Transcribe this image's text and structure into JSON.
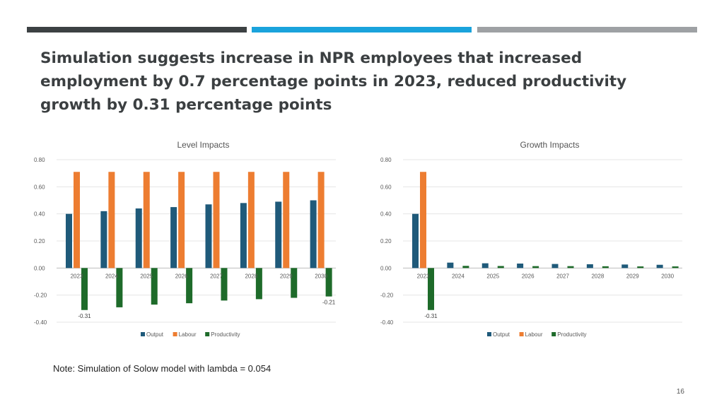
{
  "slide": {
    "title": "Simulation suggests increase in NPR employees that increased employment by 0.7 percentage points in 2023, reduced productivity growth by 0.31 percentage points",
    "note": "Note: Simulation of Solow model with lambda = 0.054",
    "page_number": "16"
  },
  "colors": {
    "output": "#1f5a7a",
    "labour": "#ed7d31",
    "productivity": "#1e6b2a"
  },
  "chart_data": [
    {
      "type": "bar",
      "title": "Level Impacts",
      "categories": [
        "2023",
        "2024",
        "2025",
        "2026",
        "2027",
        "2028",
        "2029",
        "2030"
      ],
      "series": [
        {
          "name": "Output",
          "values": [
            0.4,
            0.42,
            0.44,
            0.45,
            0.47,
            0.48,
            0.49,
            0.5
          ]
        },
        {
          "name": "Labour",
          "values": [
            0.71,
            0.71,
            0.71,
            0.71,
            0.71,
            0.71,
            0.71,
            0.71
          ]
        },
        {
          "name": "Productivity",
          "values": [
            -0.31,
            -0.29,
            -0.27,
            -0.26,
            -0.24,
            -0.23,
            -0.22,
            -0.21
          ]
        }
      ],
      "ylim": [
        -0.4,
        0.8
      ],
      "yticks": [
        "0.80",
        "0.60",
        "0.40",
        "0.20",
        "0.00",
        "-0.20",
        "-0.40"
      ],
      "data_labels": [
        {
          "series": "Productivity",
          "category": "2023",
          "text": "-0.31"
        },
        {
          "series": "Productivity",
          "category": "2030",
          "text": "-0.21"
        }
      ],
      "legend_position": "bottom"
    },
    {
      "type": "bar",
      "title": "Growth Impacts",
      "categories": [
        "2023",
        "2024",
        "2025",
        "2026",
        "2027",
        "2028",
        "2029",
        "2030"
      ],
      "series": [
        {
          "name": "Output",
          "values": [
            0.4,
            0.04,
            0.035,
            0.033,
            0.03,
            0.028,
            0.026,
            0.024
          ]
        },
        {
          "name": "Labour",
          "values": [
            0.71,
            0,
            0,
            0,
            0,
            0,
            0,
            0
          ]
        },
        {
          "name": "Productivity",
          "values": [
            -0.31,
            0.016,
            0.015,
            0.014,
            0.014,
            0.013,
            0.012,
            0.012
          ]
        }
      ],
      "ylim": [
        -0.4,
        0.8
      ],
      "yticks": [
        "0.80",
        "0.60",
        "0.40",
        "0.20",
        "0.00",
        "-0.20",
        "-0.40"
      ],
      "data_labels": [
        {
          "series": "Productivity",
          "category": "2023",
          "text": "-0.31"
        }
      ],
      "legend_position": "bottom"
    }
  ]
}
